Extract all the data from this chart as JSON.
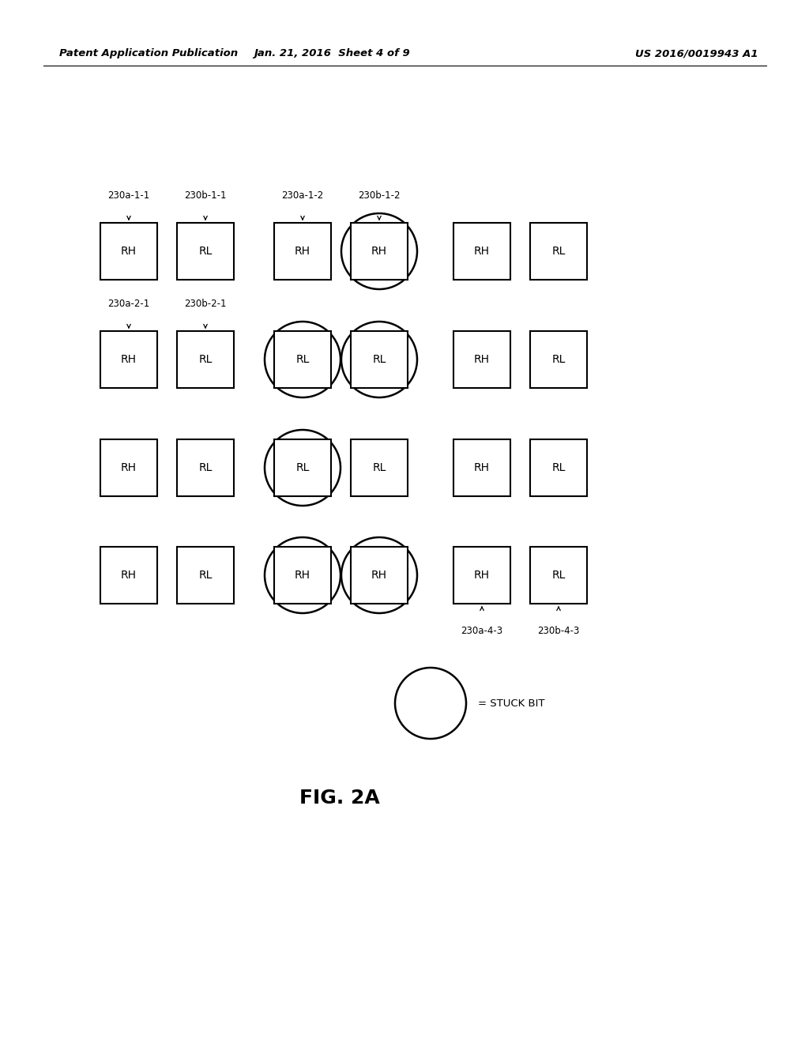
{
  "header_left": "Patent Application Publication",
  "header_mid": "Jan. 21, 2016  Sheet 4 of 9",
  "header_right": "US 2016/0019943 A1",
  "figure_caption": "FIG. 2A",
  "background_color": "#ffffff",
  "text_color": "#000000",
  "cell_labels": [
    [
      [
        "RH",
        "RL"
      ],
      [
        "RH",
        "RH"
      ],
      [
        "RH",
        "RL"
      ]
    ],
    [
      [
        "RH",
        "RL"
      ],
      [
        "RL",
        "RL"
      ],
      [
        "RH",
        "RL"
      ]
    ],
    [
      [
        "RH",
        "RL"
      ],
      [
        "RL",
        "RL"
      ],
      [
        "RH",
        "RL"
      ]
    ],
    [
      [
        "RH",
        "RL"
      ],
      [
        "RH",
        "RH"
      ],
      [
        "RH",
        "RL"
      ]
    ]
  ],
  "stuck_ellipses": [
    {
      "row": 0,
      "col": 1,
      "cell": 1
    },
    {
      "row": 1,
      "col": 1,
      "cell": 0
    },
    {
      "row": 1,
      "col": 1,
      "cell": 1
    },
    {
      "row": 2,
      "col": 1,
      "cell": 0
    },
    {
      "row": 3,
      "col": 1,
      "cell": 0
    },
    {
      "row": 3,
      "col": 1,
      "cell": 1
    }
  ],
  "annotations": [
    {
      "row": 0,
      "col": 0,
      "cell": 0,
      "label": "230a-1-1",
      "side": "top"
    },
    {
      "row": 0,
      "col": 0,
      "cell": 1,
      "label": "230b-1-1",
      "side": "top"
    },
    {
      "row": 0,
      "col": 1,
      "cell": 0,
      "label": "230a-1-2",
      "side": "top"
    },
    {
      "row": 0,
      "col": 1,
      "cell": 1,
      "label": "230b-1-2",
      "side": "top"
    },
    {
      "row": 1,
      "col": 0,
      "cell": 0,
      "label": "230a-2-1",
      "side": "top"
    },
    {
      "row": 1,
      "col": 0,
      "cell": 1,
      "label": "230b-2-1",
      "side": "top"
    },
    {
      "row": 3,
      "col": 2,
      "cell": 0,
      "label": "230a-4-3",
      "side": "bottom"
    },
    {
      "row": 3,
      "col": 2,
      "cell": 1,
      "label": "230b-4-3",
      "side": "bottom"
    }
  ],
  "legend_text": "= STUCK BIT"
}
